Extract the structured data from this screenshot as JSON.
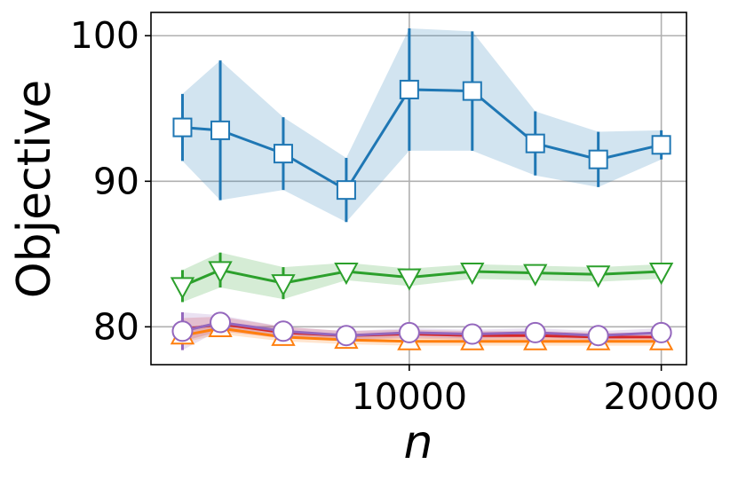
{
  "chart_data": {
    "type": "line",
    "title": "",
    "xlabel": "n",
    "ylabel": "Objective",
    "xlim": [
      -250,
      21000
    ],
    "ylim": [
      77.4,
      101.6
    ],
    "x_ticks": [
      10000,
      20000
    ],
    "x_tick_labels": [
      "10000",
      "20000"
    ],
    "y_ticks": [
      80,
      90,
      100
    ],
    "y_tick_labels": [
      "80",
      "90",
      "100"
    ],
    "grid": true,
    "x": [
      1000,
      2500,
      5000,
      7500,
      10000,
      12500,
      15000,
      17500,
      20000
    ],
    "series": [
      {
        "name": "blue-squares",
        "color": "#1f77b4",
        "marker": "square",
        "values": [
          93.7,
          93.5,
          91.9,
          89.4,
          96.3,
          96.2,
          92.6,
          91.5,
          92.5
        ],
        "errors": [
          2.3,
          4.8,
          2.5,
          2.2,
          4.2,
          4.1,
          2.2,
          1.9,
          1.0
        ]
      },
      {
        "name": "green-down-triangles",
        "color": "#2ca02c",
        "marker": "triangle-down",
        "values": [
          82.8,
          83.9,
          83.0,
          83.8,
          83.4,
          83.8,
          83.7,
          83.6,
          83.8
        ],
        "errors": [
          1.1,
          1.2,
          1.1,
          0.6,
          0.6,
          0.5,
          0.5,
          0.5,
          0.5
        ]
      },
      {
        "name": "orange-up-triangles",
        "color": "#ff7f0e",
        "marker": "triangle-up",
        "values": [
          79.4,
          79.9,
          79.3,
          79.1,
          79.0,
          79.0,
          79.0,
          79.0,
          79.0
        ],
        "errors": [
          0.5,
          0.4,
          0.3,
          0.3,
          0.3,
          0.3,
          0.3,
          0.3,
          0.3
        ]
      },
      {
        "name": "red-line",
        "color": "#d62728",
        "marker": "none",
        "values": [
          79.8,
          80.2,
          79.6,
          79.4,
          79.5,
          79.4,
          79.4,
          79.3,
          79.3
        ],
        "errors": [
          0.8,
          0.5,
          0.4,
          0.3,
          0.3,
          0.3,
          0.3,
          0.3,
          0.3
        ]
      },
      {
        "name": "purple-circles",
        "color": "#9467bd",
        "marker": "circle",
        "values": [
          79.7,
          80.3,
          79.7,
          79.4,
          79.6,
          79.5,
          79.6,
          79.4,
          79.6
        ],
        "errors": [
          1.3,
          0.5,
          0.3,
          0.3,
          0.3,
          0.3,
          0.3,
          0.3,
          0.3
        ]
      }
    ]
  }
}
